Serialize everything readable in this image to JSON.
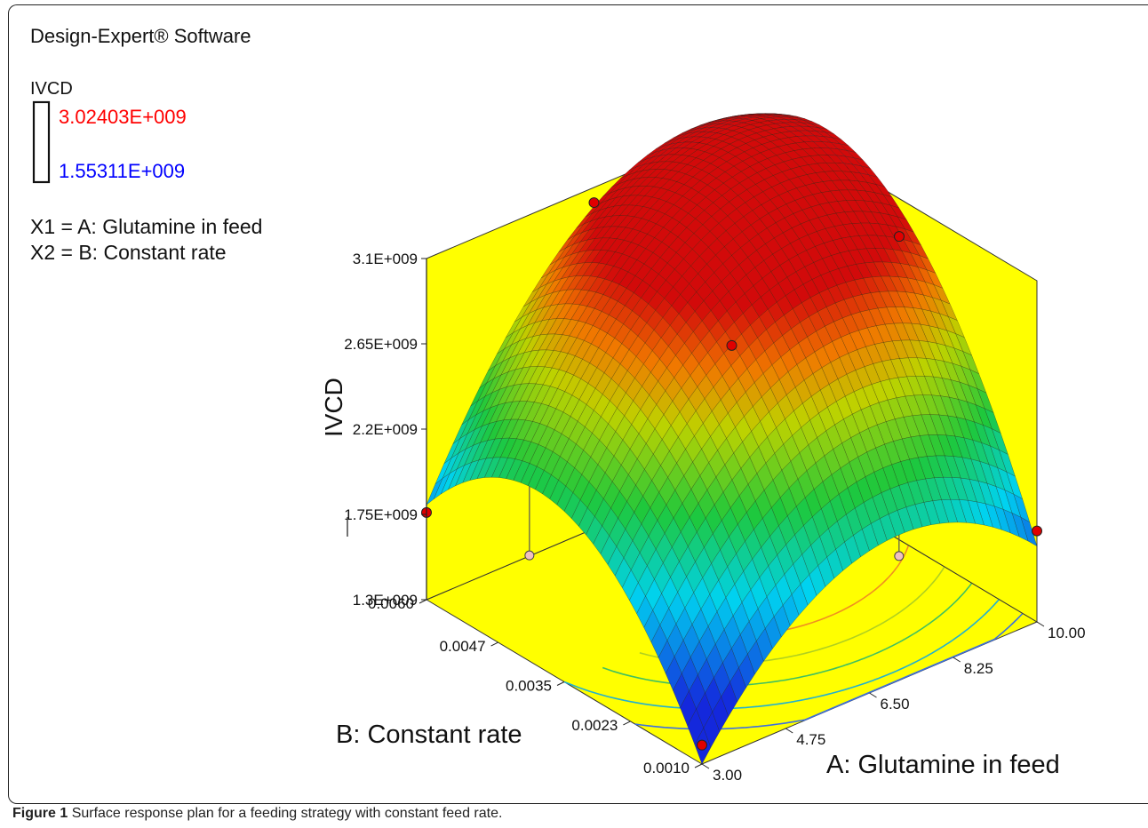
{
  "software_label": "Design-Expert® Software",
  "legend": {
    "title": "IVCD",
    "high": "3.02403E+009",
    "low": "1.55311E+009",
    "high_color": "#ff0000",
    "low_color": "#0000ff",
    "x1": "X1 = A: Glutamine in feed",
    "x2": "X2 = B: Constant rate"
  },
  "caption": {
    "label": "Figure 1",
    "text": "Surface response plan for a feeding strategy with constant feed rate."
  },
  "chart_data": {
    "type": "surface3d",
    "zlabel": "IVCD",
    "xlabel": "A: Glutamine in feed",
    "ylabel": "B: Constant rate",
    "z_ticks": [
      "3.1E+009",
      "2.65E+009",
      "2.2E+009",
      "1.75E+009",
      "1.3E+009"
    ],
    "z_tick_values": [
      3100000000.0,
      2650000000.0,
      2200000000.0,
      1750000000.0,
      1300000000.0
    ],
    "x_ticks": [
      "3.00",
      "4.75",
      "6.50",
      "8.25",
      "10.00"
    ],
    "x_tick_values": [
      3.0,
      4.75,
      6.5,
      8.25,
      10.0
    ],
    "y_ticks": [
      "0.0010",
      "0.0023",
      "0.0035",
      "0.0047",
      "0.0060"
    ],
    "y_tick_values": [
      0.001,
      0.0023,
      0.0035,
      0.0047,
      0.006
    ],
    "xlim": [
      3.0,
      10.0
    ],
    "ylim": [
      0.001,
      0.006
    ],
    "zlim": [
      1300000000.0,
      3100000000.0
    ],
    "corner_values": {
      "a_low_b_low": 1300000000.0,
      "a_high_b_low": 1700000000.0,
      "a_low_b_high": 1800000000.0,
      "a_high_b_high": 3100000000.0
    },
    "design_points": [
      {
        "A": 3.0,
        "B": 0.001,
        "IVCD": 1400000000.0,
        "above_surface": true
      },
      {
        "A": 10.0,
        "B": 0.001,
        "IVCD": 1780000000.0,
        "above_surface": true
      },
      {
        "A": 3.0,
        "B": 0.006,
        "IVCD": 1760000000.0,
        "above_surface": true
      },
      {
        "A": 6.5,
        "B": 0.0035,
        "IVCD": 2700000000.0,
        "above_surface": true
      },
      {
        "A": 10.0,
        "B": 0.0035,
        "IVCD": 2900000000.0,
        "above_surface": true
      },
      {
        "A": 6.5,
        "B": 0.006,
        "IVCD": 3020000000.0,
        "above_surface": true
      },
      {
        "A": 4.0,
        "B": 0.005,
        "IVCD": 1600000000.0,
        "above_surface": false
      },
      {
        "A": 8.5,
        "B": 0.0022,
        "IVCD": 1600000000.0,
        "above_surface": false
      }
    ],
    "colors": {
      "wall": "#ffff00",
      "floor": "#ffff00",
      "dot": "#e00000",
      "dot_below": "#f0c0c0"
    }
  }
}
